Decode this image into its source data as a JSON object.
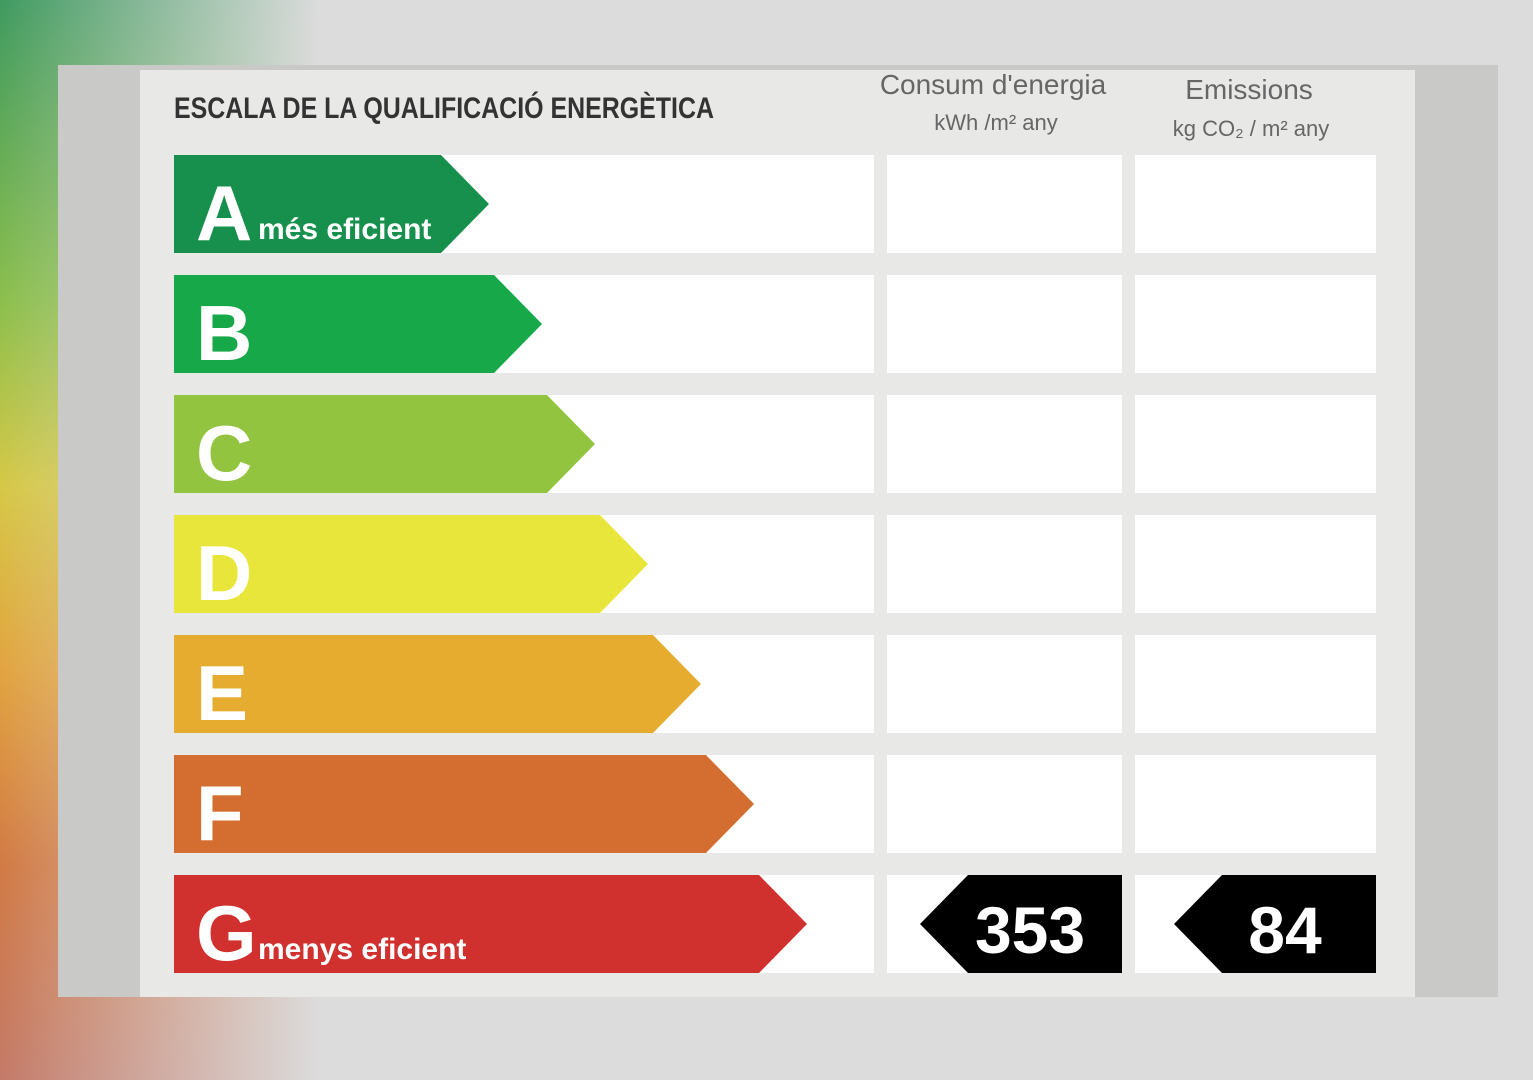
{
  "title": "ESCALA DE LA QUALIFICACIÓ ENERGÈTICA",
  "columns": [
    {
      "title": "Consum d'energia",
      "unit": "kWh /m² any"
    },
    {
      "title": "Emissions",
      "unit": "kg CO₂ / m² any"
    }
  ],
  "rows": [
    {
      "letter": "A",
      "label": "més eficient"
    },
    {
      "letter": "B"
    },
    {
      "letter": "C"
    },
    {
      "letter": "D"
    },
    {
      "letter": "E"
    },
    {
      "letter": "F"
    },
    {
      "letter": "G",
      "label": "menys eficient",
      "energy": 353,
      "emissions": 84
    }
  ]
}
